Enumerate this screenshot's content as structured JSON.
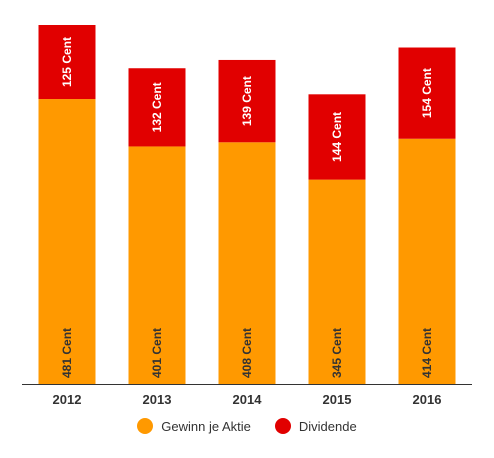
{
  "chart_data": {
    "type": "bar",
    "stacked": true,
    "categories": [
      "2012",
      "2013",
      "2014",
      "2015",
      "2016"
    ],
    "series": [
      {
        "name": "Gewinn je Aktie",
        "color": "#FF9900",
        "label_color": "#333333",
        "values": [
          481,
          401,
          408,
          345,
          414
        ],
        "labels": [
          "481 Cent",
          "401 Cent",
          "408 Cent",
          "345 Cent",
          "414 Cent"
        ]
      },
      {
        "name": "Dividende",
        "color": "#E10000",
        "label_color": "#ffffff",
        "values": [
          125,
          132,
          139,
          144,
          154
        ],
        "labels": [
          "125 Cent",
          "132 Cent",
          "139 Cent",
          "144 Cent",
          "154 Cent"
        ]
      }
    ],
    "ylim": [
      0,
      606
    ],
    "grid": false,
    "legend_position": "bottom"
  }
}
